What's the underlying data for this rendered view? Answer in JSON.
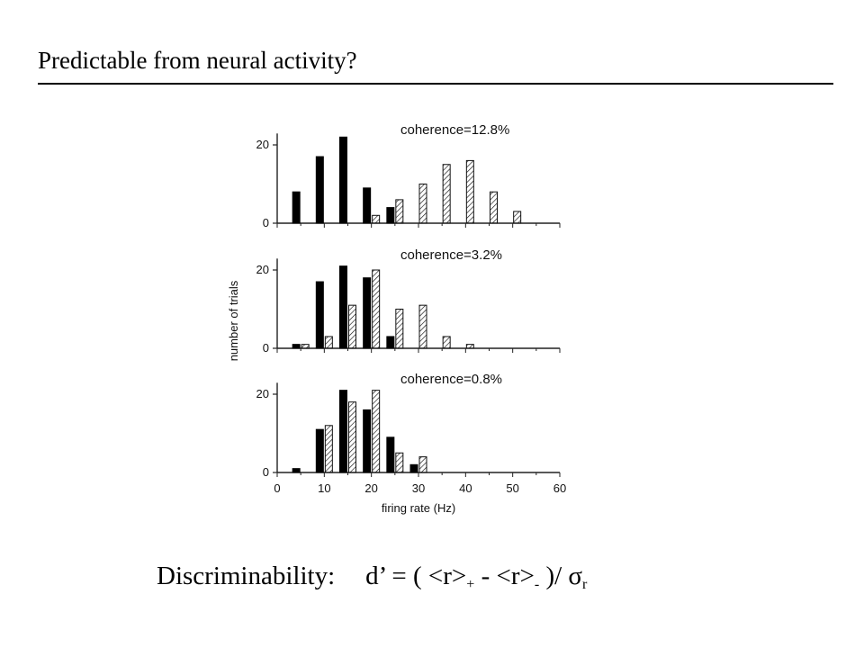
{
  "slide": {
    "title": "Predictable from neural activity?"
  },
  "formula": {
    "label": "Discriminability:",
    "lhs": "d’ = ( <r>",
    "sub_plus": "+",
    "mid": " - <r>",
    "sub_minus": "-",
    "rhs": " )/ ",
    "sigma": "σ",
    "sub_r": "r"
  },
  "colors": {
    "filled_bar": "#000000",
    "hatched_bar_stroke": "#111111",
    "axis": "#222222"
  },
  "chart_data": [
    {
      "type": "bar",
      "annotation": "coherence=12.8%",
      "ylabel": "number of trials",
      "xlabel": "firing rate (Hz)",
      "xlim": [
        0,
        60
      ],
      "ylim": [
        0,
        22
      ],
      "yticks": [
        0,
        20
      ],
      "series": [
        {
          "style": "filled",
          "x": [
            5,
            10,
            15,
            20,
            25
          ],
          "values": [
            8,
            17,
            22,
            9,
            4
          ]
        },
        {
          "style": "hatched",
          "x": [
            20,
            25,
            30,
            35,
            40,
            45,
            50
          ],
          "values": [
            2,
            6,
            10,
            15,
            16,
            8,
            3
          ]
        }
      ]
    },
    {
      "type": "bar",
      "annotation": "coherence=3.2%",
      "ylabel": "number of trials",
      "xlabel": "firing rate (Hz)",
      "xlim": [
        0,
        60
      ],
      "ylim": [
        0,
        22
      ],
      "yticks": [
        0,
        20
      ],
      "series": [
        {
          "style": "filled",
          "x": [
            5,
            10,
            15,
            20,
            25
          ],
          "values": [
            1,
            17,
            21,
            18,
            3
          ]
        },
        {
          "style": "hatched",
          "x": [
            5,
            10,
            15,
            20,
            25,
            30,
            35,
            40
          ],
          "values": [
            1,
            3,
            11,
            20,
            10,
            11,
            3,
            1
          ]
        }
      ]
    },
    {
      "type": "bar",
      "annotation": "coherence=0.8%",
      "ylabel": "number of trials",
      "xlabel": "firing rate (Hz)",
      "xlim": [
        0,
        60
      ],
      "ylim": [
        0,
        22
      ],
      "yticks": [
        0,
        20
      ],
      "xticks": [
        0,
        10,
        20,
        30,
        40,
        50,
        60
      ],
      "series": [
        {
          "style": "filled",
          "x": [
            5,
            10,
            15,
            20,
            25,
            30
          ],
          "values": [
            1,
            11,
            21,
            16,
            9,
            2
          ]
        },
        {
          "style": "hatched",
          "x": [
            10,
            15,
            20,
            25,
            30
          ],
          "values": [
            12,
            18,
            21,
            5,
            4
          ]
        }
      ]
    }
  ]
}
